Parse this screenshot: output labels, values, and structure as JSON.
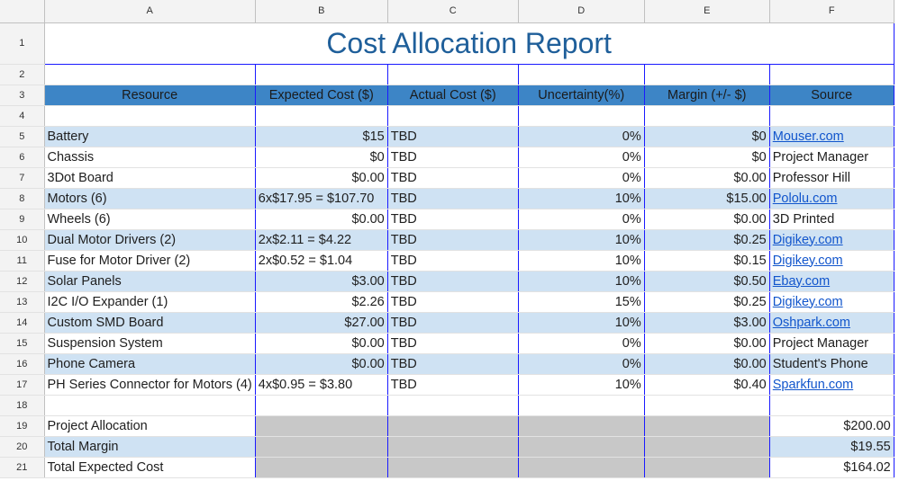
{
  "columns": [
    "A",
    "B",
    "C",
    "D",
    "E",
    "F"
  ],
  "row_numbers": [
    "1",
    "2",
    "3",
    "4",
    "5",
    "6",
    "7",
    "8",
    "9",
    "10",
    "11",
    "12",
    "13",
    "14",
    "15",
    "16",
    "17",
    "18",
    "19",
    "20",
    "21"
  ],
  "title": "Cost Allocation Report",
  "headers": {
    "resource": "Resource",
    "expected": "Expected Cost ($)",
    "actual": "Actual Cost ($)",
    "uncertainty": "Uncertainty(%)",
    "margin": "Margin (+/- $)",
    "source": "Source"
  },
  "rows": [
    {
      "resource": "Battery",
      "expected": "$15",
      "actual": "TBD",
      "uncertainty": "0%",
      "margin": "$0",
      "source": "Mouser.com"
    },
    {
      "resource": "Chassis",
      "expected": "$0",
      "actual": "TBD",
      "uncertainty": "0%",
      "margin": "$0",
      "source": "Project Manager"
    },
    {
      "resource": "3Dot Board",
      "expected": "$0.00",
      "actual": "TBD",
      "uncertainty": "0%",
      "margin": "$0.00",
      "source": "Professor Hill"
    },
    {
      "resource": "Motors (6)",
      "expected": "6x$17.95 = $107.70",
      "actual": "TBD",
      "uncertainty": "10%",
      "margin": "$15.00",
      "source": "Pololu.com"
    },
    {
      "resource": "Wheels (6)",
      "expected": "$0.00",
      "actual": "TBD",
      "uncertainty": "0%",
      "margin": "$0.00",
      "source": "3D Printed"
    },
    {
      "resource": "Dual Motor Drivers (2)",
      "expected": "2x$2.11 = $4.22",
      "actual": "TBD",
      "uncertainty": "10%",
      "margin": "$0.25",
      "source": "Digikey.com"
    },
    {
      "resource": "Fuse for Motor Driver (2)",
      "expected": "2x$0.52 = $1.04",
      "actual": "TBD",
      "uncertainty": "10%",
      "margin": "$0.15",
      "source": "Digikey.com"
    },
    {
      "resource": "Solar Panels",
      "expected": "$3.00",
      "actual": "TBD",
      "uncertainty": "10%",
      "margin": "$0.50",
      "source": "Ebay.com"
    },
    {
      "resource": "I2C I/O Expander (1)",
      "expected": "$2.26",
      "actual": "TBD",
      "uncertainty": "15%",
      "margin": "$0.25",
      "source": "Digikey.com"
    },
    {
      "resource": "Custom SMD Board",
      "expected": "$27.00",
      "actual": "TBD",
      "uncertainty": "10%",
      "margin": "$3.00",
      "source": "Oshpark.com"
    },
    {
      "resource": "Suspension System",
      "expected": "$0.00",
      "actual": "TBD",
      "uncertainty": "0%",
      "margin": "$0.00",
      "source": "Project Manager"
    },
    {
      "resource": "Phone Camera",
      "expected": "$0.00",
      "actual": "TBD",
      "uncertainty": "0%",
      "margin": "$0.00",
      "source": "Student's Phone"
    },
    {
      "resource": "PH Series Connector for Motors (4)",
      "expected": "4x$0.95 = $3.80",
      "actual": "TBD",
      "uncertainty": "10%",
      "margin": "$0.40",
      "source": "Sparkfun.com"
    }
  ],
  "summary": [
    {
      "label": "Project Allocation",
      "value": "$200.00"
    },
    {
      "label": "Total Margin",
      "value": "$19.55"
    },
    {
      "label": "Total Expected Cost",
      "value": "$164.02"
    }
  ],
  "colors": {
    "header_fill": "#3d85c6",
    "band_fill": "#cfe2f3",
    "title_text": "#1f5f9a",
    "link_text": "#1155cc",
    "summary_gray": "#c8c8c8",
    "border_blue": "#1a1aff"
  }
}
